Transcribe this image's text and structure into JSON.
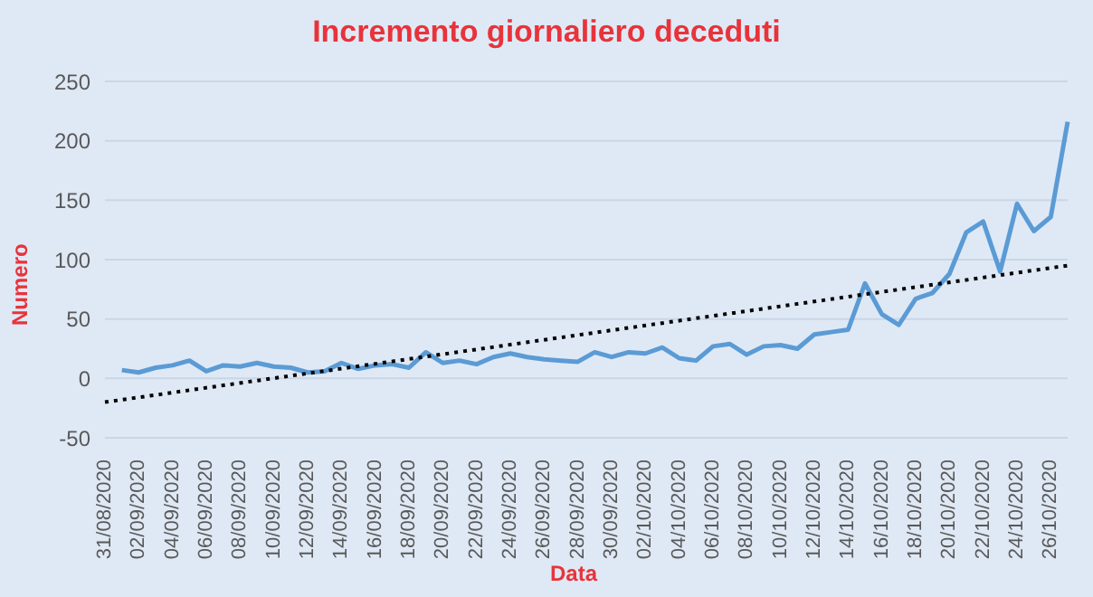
{
  "chart_data": {
    "type": "line",
    "title": "Incremento giornaliero deceduti",
    "xlabel": "Data",
    "ylabel": "Numero",
    "categories": [
      "31/08/2020",
      null,
      "02/09/2020",
      null,
      "04/09/2020",
      null,
      "06/09/2020",
      null,
      "08/09/2020",
      null,
      "10/09/2020",
      null,
      "12/09/2020",
      null,
      "14/09/2020",
      null,
      "16/09/2020",
      null,
      "18/09/2020",
      null,
      "20/09/2020",
      null,
      "22/09/2020",
      null,
      "24/09/2020",
      null,
      "26/09/2020",
      null,
      "28/09/2020",
      null,
      "30/09/2020",
      null,
      "02/10/2020",
      null,
      "04/10/2020",
      null,
      "06/10/2020",
      null,
      "08/10/2020",
      null,
      "10/10/2020",
      null,
      "12/10/2020",
      null,
      "14/10/2020",
      null,
      "16/10/2020",
      null,
      "18/10/2020",
      null,
      "20/10/2020",
      null,
      "22/10/2020",
      null,
      "24/10/2020",
      null,
      "26/10/2020",
      null
    ],
    "series": [
      {
        "color": "#5b9bd5",
        "line_style": "solid",
        "values": [
          null,
          7,
          5,
          9,
          11,
          15,
          6,
          11,
          10,
          13,
          10,
          9,
          5,
          6,
          13,
          8,
          11,
          12,
          9,
          22,
          13,
          15,
          12,
          18,
          21,
          18,
          16,
          15,
          14,
          22,
          18,
          22,
          21,
          26,
          17,
          15,
          27,
          29,
          20,
          27,
          28,
          25,
          37,
          39,
          41,
          80,
          54,
          45,
          67,
          72,
          88,
          123,
          132,
          90,
          147,
          124,
          136,
          216
        ]
      },
      {
        "type": "line",
        "color": "#000000",
        "line_style": "dotted",
        "values": [
          -20,
          null,
          null,
          null,
          null,
          null,
          null,
          null,
          null,
          null,
          null,
          null,
          null,
          null,
          null,
          null,
          null,
          null,
          null,
          null,
          null,
          null,
          null,
          null,
          null,
          null,
          null,
          null,
          null,
          null,
          null,
          null,
          null,
          null,
          null,
          null,
          null,
          null,
          null,
          null,
          null,
          null,
          null,
          null,
          null,
          null,
          null,
          null,
          null,
          null,
          null,
          null,
          null,
          null,
          null,
          null,
          null,
          95
        ]
      }
    ],
    "ylim": [
      -50,
      250
    ],
    "yticks": [
      -50,
      0,
      50,
      100,
      150,
      200,
      250
    ],
    "grid": "y"
  }
}
